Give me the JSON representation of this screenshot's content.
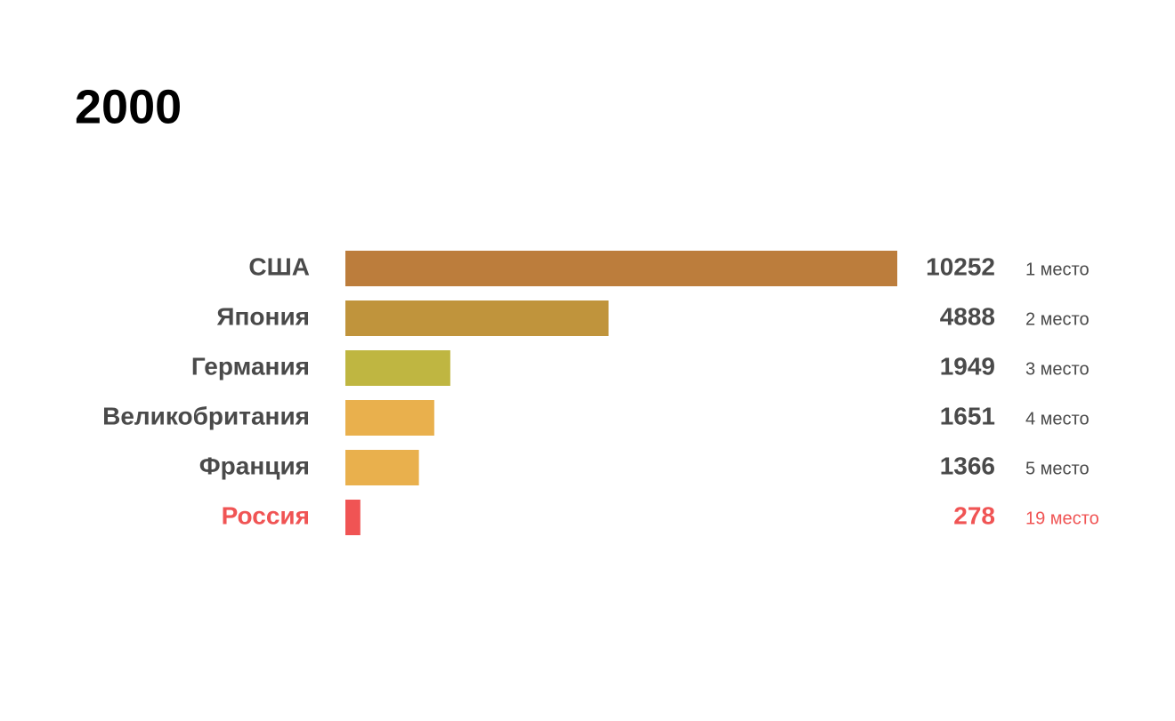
{
  "chart_data": {
    "type": "bar",
    "orientation": "horizontal",
    "title": "2000",
    "categories": [
      "США",
      "Япония",
      "Германия",
      "Великобритания",
      "Франция",
      "Россия"
    ],
    "values": [
      10252,
      4888,
      1949,
      1651,
      1366,
      278
    ],
    "rank_labels": [
      "1 место",
      "2 место",
      "3 место",
      "4 место",
      "5 место",
      "19 место"
    ],
    "colors": [
      "#bc7d3c",
      "#c0943c",
      "#bfb641",
      "#e9b04d",
      "#e9b04d",
      "#f05454"
    ],
    "text_colors": [
      "#4a4a4a",
      "#4a4a4a",
      "#4a4a4a",
      "#4a4a4a",
      "#4a4a4a",
      "#f05454"
    ]
  }
}
